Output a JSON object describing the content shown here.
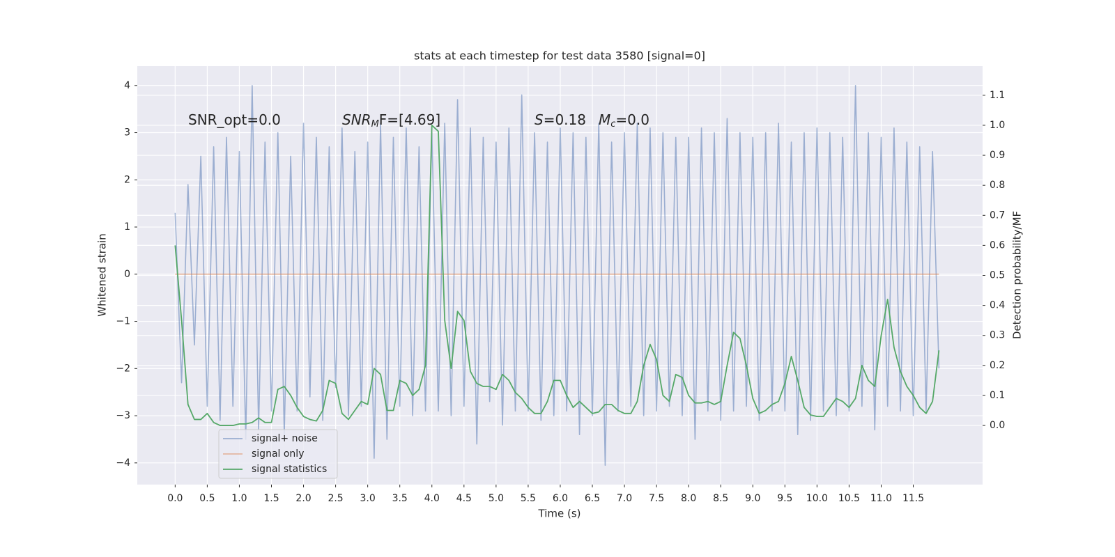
{
  "chart_data": {
    "type": "line",
    "title": "stats at each timestep for test data 3580 [signal=0]",
    "x_label": "Time (s)",
    "y_label": "Whitened strain",
    "y2_label": "Detection probability/MF",
    "annotations": [
      [
        "SNR_opt=0.0"
      ],
      [
        "SNR",
        "M",
        "F=[4.69]"
      ],
      [
        "S",
        "=0.18"
      ],
      [
        "M",
        "c",
        "=0.0"
      ]
    ],
    "grid": true,
    "legend": "lower left",
    "xlim": [
      -0.59,
      12.58
    ],
    "ylim": [
      -4.46,
      4.41
    ],
    "y2lim": [
      -0.197,
      1.197
    ],
    "xticks": [
      {
        "value": 0,
        "label": "0.0"
      },
      0.5,
      {
        "value": 1,
        "label": "1.0"
      },
      1.5,
      {
        "value": 2,
        "label": "2.0"
      },
      2.5,
      {
        "value": 3,
        "label": "3.0"
      },
      3.5,
      {
        "value": 4,
        "label": "4.0"
      },
      4.5,
      {
        "value": 5,
        "label": "5.0"
      },
      5.5,
      {
        "value": 6,
        "label": "6.0"
      },
      6.5,
      {
        "value": 7,
        "label": "7.0"
      },
      7.5,
      {
        "value": 8,
        "label": "8.0"
      },
      8.5,
      {
        "value": 9,
        "label": "9.0"
      },
      9.5,
      {
        "value": 10,
        "label": "10.0"
      },
      10.5,
      {
        "value": 11,
        "label": "11.0"
      },
      11.5
    ],
    "yticks": [
      {
        "value": -4,
        "label": "−4"
      },
      {
        "value": -3,
        "label": "−3"
      },
      {
        "value": -2,
        "label": "−2"
      },
      {
        "value": -1,
        "label": "−1"
      },
      0,
      1,
      2,
      3,
      4
    ],
    "y2ticks": [
      {
        "value": 0,
        "label": "0.0"
      },
      0.1,
      0.2,
      0.3,
      0.4,
      0.5,
      0.6,
      0.7,
      0.8,
      0.9,
      {
        "value": 1,
        "label": "1.0"
      },
      1.1
    ],
    "x": [
      0,
      0.1,
      0.2,
      0.3,
      0.4,
      0.5,
      0.6,
      0.7,
      0.8,
      0.9,
      1,
      1.1,
      1.2,
      1.3,
      1.4,
      1.5,
      1.6,
      1.7,
      1.8,
      1.9,
      2,
      2.1,
      2.2,
      2.3,
      2.4,
      2.5,
      2.6,
      2.7,
      2.8,
      2.9,
      3,
      3.1,
      3.2,
      3.3,
      3.4,
      3.5,
      3.6,
      3.7,
      3.8,
      3.9,
      4,
      4.1,
      4.2,
      4.3,
      4.4,
      4.5,
      4.6,
      4.7,
      4.8,
      4.9,
      5,
      5.1,
      5.2,
      5.3,
      5.4,
      5.5,
      5.6,
      5.7,
      5.8,
      5.9,
      6,
      6.1,
      6.2,
      6.3,
      6.4,
      6.5,
      6.6,
      6.7,
      6.8,
      6.9,
      7,
      7.1,
      7.2,
      7.3,
      7.4,
      7.5,
      7.6,
      7.7,
      7.8,
      7.9,
      8,
      8.1,
      8.2,
      8.3,
      8.4,
      8.5,
      8.6,
      8.7,
      8.8,
      8.9,
      9,
      9.1,
      9.2,
      9.3,
      9.4,
      9.5,
      9.6,
      9.7,
      9.8,
      9.9,
      10,
      10.1,
      10.2,
      10.3,
      10.4,
      10.5,
      10.6,
      10.7,
      10.8,
      10.9,
      11,
      11.1,
      11.2,
      11.3,
      11.4,
      11.5,
      11.6,
      11.7,
      11.8,
      11.9
    ],
    "series": [
      {
        "name": "signal+ noise",
        "color": "#4c72b0",
        "opacity": 0.5,
        "values": [
          1.3,
          -2.3,
          1.9,
          -1.5,
          2.5,
          -2.8,
          2.7,
          -3.1,
          2.9,
          -2.8,
          2.6,
          -3.5,
          4.0,
          -3.3,
          2.8,
          -2.9,
          3.0,
          -3.4,
          2.5,
          -2.9,
          3.2,
          -2.6,
          2.9,
          -3.1,
          2.7,
          -2.4,
          3.1,
          -3.0,
          2.6,
          -2.8,
          2.8,
          -3.9,
          3.2,
          -3.5,
          2.9,
          -2.8,
          3.1,
          -3.0,
          2.7,
          -2.9,
          3.0,
          -2.9,
          3.2,
          -3.0,
          3.7,
          -2.8,
          3.1,
          -3.6,
          2.9,
          -2.7,
          2.8,
          -3.2,
          3.1,
          -2.9,
          3.8,
          -2.9,
          3.0,
          -3.1,
          2.8,
          -3.0,
          3.1,
          -2.9,
          3.0,
          -3.4,
          2.9,
          -3.0,
          3.2,
          -4.05,
          2.8,
          -2.9,
          3.0,
          -2.8,
          3.2,
          -3.0,
          3.1,
          -2.9,
          3.0,
          -2.8,
          2.9,
          -3.0,
          2.9,
          -3.5,
          3.1,
          -2.9,
          3.0,
          -3.1,
          3.3,
          -2.9,
          3.0,
          -2.8,
          2.9,
          -3.1,
          3.0,
          -2.9,
          3.2,
          -2.9,
          2.8,
          -3.4,
          3.0,
          -3.1,
          3.1,
          -2.9,
          3.0,
          -3.0,
          2.9,
          -2.9,
          4.0,
          -2.8,
          3.0,
          -3.3,
          2.9,
          -2.8,
          3.1,
          -2.9,
          2.8,
          -3.0,
          2.7,
          -2.9,
          2.6,
          -2.0
        ]
      },
      {
        "name": "signal only",
        "color": "#dd8452",
        "opacity": 0.5,
        "values": [
          0,
          0,
          0,
          0,
          0,
          0,
          0,
          0,
          0,
          0,
          0,
          0,
          0,
          0,
          0,
          0,
          0,
          0,
          0,
          0,
          0,
          0,
          0,
          0,
          0,
          0,
          0,
          0,
          0,
          0,
          0,
          0,
          0,
          0,
          0,
          0,
          0,
          0,
          0,
          0,
          0,
          0,
          0,
          0,
          0,
          0,
          0,
          0,
          0,
          0,
          0,
          0,
          0,
          0,
          0,
          0,
          0,
          0,
          0,
          0,
          0,
          0,
          0,
          0,
          0,
          0,
          0,
          0,
          0,
          0,
          0,
          0,
          0,
          0,
          0,
          0,
          0,
          0,
          0,
          0,
          0,
          0,
          0,
          0,
          0,
          0,
          0,
          0,
          0,
          0,
          0,
          0,
          0,
          0,
          0,
          0,
          0,
          0,
          0,
          0,
          0,
          0,
          0,
          0,
          0,
          0,
          0,
          0,
          0,
          0,
          0,
          0,
          0,
          0,
          0,
          0,
          0,
          0,
          0,
          0
        ]
      },
      {
        "name": "signal statistics",
        "color": "#55a868",
        "opacity": 1,
        "axis": "y2",
        "values": [
          0.6,
          0.35,
          0.07,
          0.02,
          0.02,
          0.04,
          0.01,
          0.0,
          0.0,
          0.0,
          0.005,
          0.005,
          0.01,
          0.025,
          0.01,
          0.01,
          0.12,
          0.13,
          0.1,
          0.06,
          0.03,
          0.02,
          0.015,
          0.05,
          0.15,
          0.14,
          0.04,
          0.02,
          0.05,
          0.08,
          0.07,
          0.19,
          0.17,
          0.05,
          0.05,
          0.15,
          0.14,
          0.1,
          0.12,
          0.2,
          1.0,
          0.98,
          0.35,
          0.19,
          0.38,
          0.35,
          0.18,
          0.14,
          0.13,
          0.13,
          0.12,
          0.17,
          0.15,
          0.11,
          0.09,
          0.06,
          0.04,
          0.04,
          0.08,
          0.15,
          0.15,
          0.1,
          0.06,
          0.08,
          0.06,
          0.04,
          0.045,
          0.07,
          0.07,
          0.05,
          0.04,
          0.04,
          0.08,
          0.2,
          0.27,
          0.22,
          0.1,
          0.08,
          0.17,
          0.16,
          0.1,
          0.075,
          0.075,
          0.08,
          0.07,
          0.08,
          0.2,
          0.31,
          0.29,
          0.2,
          0.09,
          0.04,
          0.05,
          0.07,
          0.08,
          0.14,
          0.23,
          0.15,
          0.06,
          0.035,
          0.03,
          0.03,
          0.06,
          0.09,
          0.08,
          0.06,
          0.09,
          0.2,
          0.15,
          0.13,
          0.3,
          0.42,
          0.26,
          0.18,
          0.13,
          0.1,
          0.06,
          0.04,
          0.08,
          0.25
        ]
      }
    ]
  }
}
